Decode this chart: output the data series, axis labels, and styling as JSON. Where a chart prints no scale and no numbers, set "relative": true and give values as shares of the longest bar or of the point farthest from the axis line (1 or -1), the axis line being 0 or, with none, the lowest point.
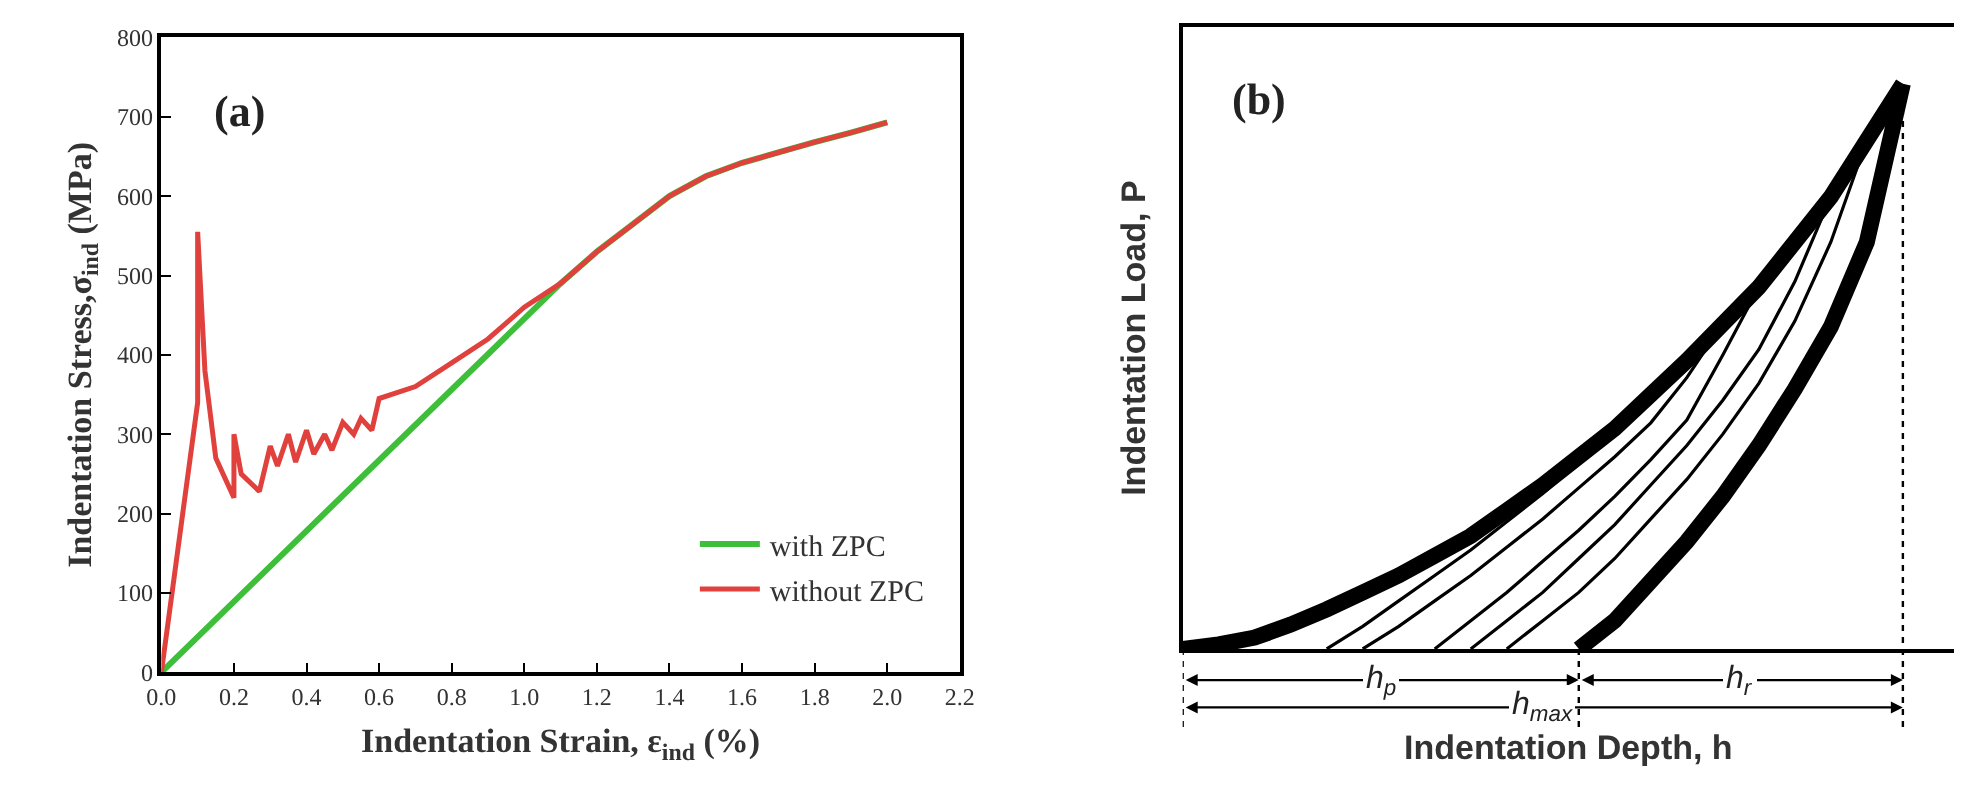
{
  "chart_data": [
    {
      "type": "line",
      "title": "(a)",
      "xlabel": "Indentation Strain, ε$_{ind}$ (%)",
      "ylabel": "Indentation Stress,σ$_{ind}$ (MPa)",
      "xlim": [
        0,
        2.2
      ],
      "xticks": [
        {
          "value": 0,
          "label": "0.0"
        },
        0.2,
        0.4,
        0.6,
        0.8,
        {
          "value": 1,
          "label": "1.0"
        },
        1.2,
        1.4,
        1.6,
        1.8,
        {
          "value": 2,
          "label": "2.0"
        },
        2.2
      ],
      "ylim": [
        0,
        800
      ],
      "yticks": [
        0,
        100,
        200,
        300,
        400,
        500,
        600,
        700,
        800
      ],
      "grid": false,
      "legend": "bottom right",
      "marker": "none",
      "line_style": "solid",
      "series": [
        {
          "name": "with ZPC",
          "color": "#3dbf3a",
          "x": [
            0,
            1.1,
            1.2,
            1.3,
            1.4,
            1.5,
            1.6,
            1.7,
            1.8,
            1.9,
            2.0
          ],
          "values": [
            0,
            490,
            530,
            565,
            600,
            625,
            642,
            655,
            668,
            680,
            693
          ]
        },
        {
          "name": "without ZPC",
          "color": "#e0413c",
          "x": [
            0,
            0.1,
            0.1,
            0.12,
            0.15,
            0.2,
            0.2,
            0.22,
            0.27,
            0.3,
            0.32,
            0.35,
            0.37,
            0.4,
            0.42,
            0.45,
            0.47,
            0.5,
            0.53,
            0.55,
            0.58,
            0.6,
            0.7,
            0.8,
            0.9,
            1.0,
            1.1,
            1.2,
            1.3,
            1.4,
            1.5,
            1.6,
            1.7,
            1.8,
            1.9,
            2.0
          ],
          "values": [
            0,
            340,
            555,
            380,
            270,
            220,
            300,
            250,
            228,
            285,
            260,
            300,
            265,
            305,
            275,
            300,
            280,
            315,
            300,
            320,
            305,
            345,
            360,
            390,
            420,
            460,
            490,
            530,
            565,
            600,
            625,
            642,
            655,
            668,
            680,
            693
          ]
        }
      ]
    },
    {
      "type": "line",
      "title": "(b)",
      "xlabel": "Indentation Depth, h",
      "ylabel": "Indentation Load, P",
      "relative": true,
      "grid": false,
      "legend": false,
      "marker": "none",
      "line_style": "solid",
      "categories": [
        null,
        null,
        null,
        null,
        null,
        null,
        null,
        null,
        null,
        null,
        null,
        null,
        null,
        null,
        null,
        null,
        null,
        null,
        null,
        null,
        null,
        null
      ],
      "series": [
        {
          "color": "#000000",
          "values": [
            0,
            0.008,
            0.02,
            0.043,
            0.07,
            0.1,
            0.13,
            0.165,
            0.2,
            0.245,
            0.29,
            0.34,
            0.39,
            0.45,
            0.51,
            0.575,
            0.64,
            0.72,
            0.8,
            0.9,
            1.0,
            null
          ]
        },
        {
          "color": "#000000",
          "values": [
            null,
            null,
            null,
            null,
            null,
            null,
            null,
            null,
            null,
            null,
            null,
            0,
            0.05,
            0.12,
            0.19,
            0.27,
            0.36,
            0.46,
            0.57,
            0.72,
            1.0,
            null
          ]
        },
        {
          "color": "#000000",
          "values": [
            null,
            null,
            null,
            null,
            0,
            0.04,
            0.085,
            0.13,
            0.175,
            0.225,
            0.275,
            0.33,
            0.385,
            0.45,
            null,
            null,
            null,
            null,
            null,
            null,
            null,
            null
          ]
        },
        {
          "color": "#000000",
          "values": [
            null,
            null,
            null,
            null,
            null,
            0,
            0.04,
            0.085,
            0.13,
            0.18,
            0.23,
            0.285,
            0.34,
            0.4,
            0.48,
            0.575,
            null,
            null,
            null,
            null,
            null,
            null
          ]
        },
        {
          "color": "#000000",
          "values": [
            null,
            null,
            null,
            null,
            null,
            null,
            null,
            0,
            0.05,
            0.1,
            0.155,
            0.21,
            0.27,
            0.335,
            0.405,
            0.52,
            0.64,
            null,
            null,
            null,
            null,
            null
          ]
        },
        {
          "color": "#000000",
          "values": [
            null,
            null,
            null,
            null,
            null,
            null,
            null,
            null,
            0,
            0.05,
            0.1,
            0.16,
            0.22,
            0.29,
            0.36,
            0.44,
            0.53,
            0.65,
            0.8,
            null,
            null,
            null
          ]
        },
        {
          "color": "#000000",
          "values": [
            null,
            null,
            null,
            null,
            null,
            null,
            null,
            null,
            null,
            0,
            0.05,
            0.1,
            0.16,
            0.23,
            0.3,
            0.38,
            0.47,
            0.58,
            0.72,
            0.9,
            null,
            null
          ]
        }
      ],
      "annotations": [
        "h$_{p}$",
        "h$_{r}$",
        "h$_{max}$"
      ]
    }
  ]
}
